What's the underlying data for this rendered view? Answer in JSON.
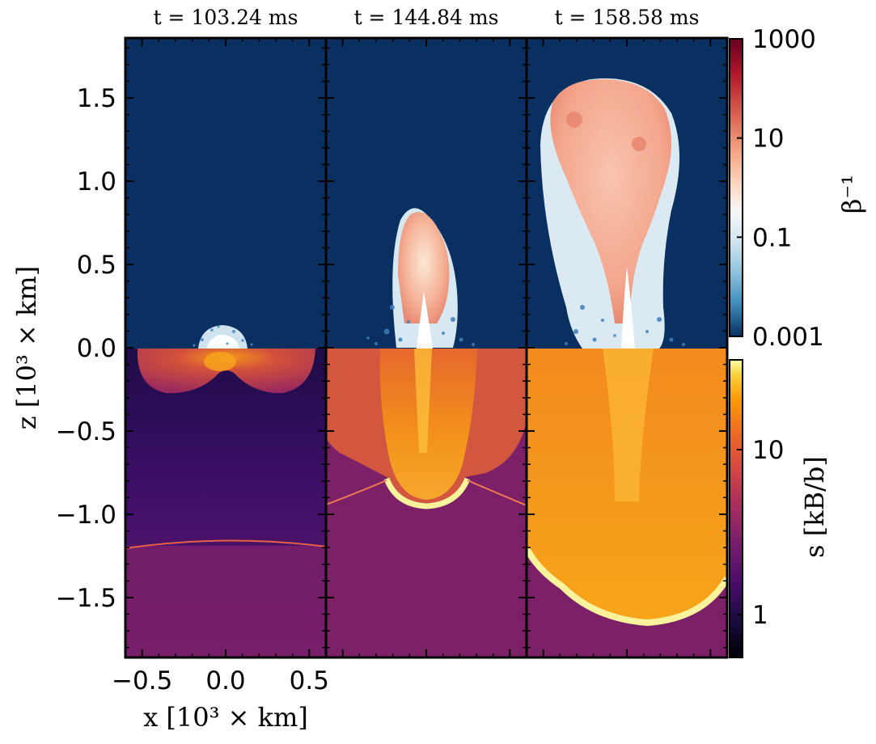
{
  "chart_data": {
    "type": "heatmap",
    "panels": [
      {
        "title": "t = 103.24 ms",
        "top_field": "β⁻¹",
        "bottom_field": "s",
        "magnetized_region_top_z": 0.13,
        "ejecta_shell_bottom_z": -0.27,
        "shock_front_z": -1.15
      },
      {
        "title": "t = 144.84 ms",
        "top_field": "β⁻¹",
        "bottom_field": "s",
        "jet_head_z": 0.92,
        "shock_front_z": -0.94
      },
      {
        "title": "t = 158.58 ms",
        "top_field": "β⁻¹",
        "bottom_field": "s",
        "jet_head_z": 1.6,
        "shock_front_z": -1.66
      }
    ],
    "xaxis": {
      "label": "x [10³ × km]",
      "ticks": [
        "−0.5",
        "0.0",
        "0.5"
      ],
      "tick_values": [
        -0.5,
        0.0,
        0.5
      ],
      "range": [
        -0.6,
        0.6
      ]
    },
    "yaxis": {
      "label": "z [10³ × km]",
      "ticks": [
        "1.5",
        "1.0",
        "0.5",
        "0.0",
        "−0.5",
        "−1.0",
        "−1.5"
      ],
      "tick_values": [
        1.5,
        1.0,
        0.5,
        0.0,
        -0.5,
        -1.0,
        -1.5
      ],
      "range": [
        -1.86,
        1.86
      ]
    },
    "colorbars": [
      {
        "label": "β⁻¹",
        "scale": "log",
        "range": [
          0.001,
          1000
        ],
        "ticks": [
          "1000",
          "10",
          "0.1",
          "0.001"
        ],
        "colormap": "RdBu_r"
      },
      {
        "label": "s [kB/b]",
        "scale": "log",
        "range": [
          0.55,
          35
        ],
        "ticks": [
          "10",
          "1"
        ],
        "colormap": "inferno"
      }
    ]
  }
}
